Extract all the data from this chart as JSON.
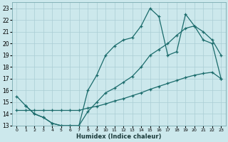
{
  "xlabel": "Humidex (Indice chaleur)",
  "bg_color": "#cce8ec",
  "line_color": "#1a6b6b",
  "grid_color": "#aacdd4",
  "xlim": [
    -0.5,
    23.5
  ],
  "ylim": [
    13,
    23.5
  ],
  "xticks": [
    0,
    1,
    2,
    3,
    4,
    5,
    6,
    7,
    8,
    9,
    10,
    11,
    12,
    13,
    14,
    15,
    16,
    17,
    18,
    19,
    20,
    21,
    22,
    23
  ],
  "yticks": [
    13,
    14,
    15,
    16,
    17,
    18,
    19,
    20,
    21,
    22,
    23
  ],
  "line1_x": [
    0,
    1,
    2,
    3,
    4,
    5,
    6,
    7,
    8,
    9,
    10,
    11,
    12,
    13,
    14,
    15,
    16,
    17,
    18,
    19,
    20,
    21,
    22,
    23
  ],
  "line1_y": [
    15.5,
    14.7,
    14.0,
    13.7,
    13.2,
    13.0,
    13.0,
    13.0,
    14.2,
    15.0,
    15.8,
    16.2,
    16.7,
    17.2,
    18.0,
    19.0,
    19.5,
    20.0,
    20.7,
    21.3,
    21.5,
    21.0,
    20.3,
    19.0
  ],
  "line2_x": [
    0,
    1,
    2,
    3,
    4,
    5,
    6,
    7,
    8,
    9,
    10,
    11,
    12,
    13,
    14,
    15,
    16,
    17,
    18,
    19,
    20,
    21,
    22,
    23
  ],
  "line2_y": [
    14.3,
    14.3,
    14.3,
    14.3,
    14.3,
    14.3,
    14.3,
    14.3,
    14.5,
    14.65,
    14.85,
    15.1,
    15.3,
    15.55,
    15.8,
    16.1,
    16.35,
    16.6,
    16.85,
    17.1,
    17.3,
    17.45,
    17.55,
    17.0
  ],
  "line3_x": [
    1,
    2,
    3,
    4,
    5,
    6,
    7,
    8,
    9,
    10,
    11,
    12,
    13,
    14,
    15,
    16,
    17,
    18,
    19,
    20,
    21,
    22,
    23
  ],
  "line3_y": [
    14.7,
    14.0,
    13.7,
    13.2,
    13.0,
    13.0,
    13.0,
    16.0,
    17.3,
    19.0,
    19.8,
    20.3,
    20.5,
    21.5,
    23.0,
    22.3,
    19.0,
    19.3,
    22.5,
    21.5,
    20.3,
    20.0,
    17.0
  ]
}
